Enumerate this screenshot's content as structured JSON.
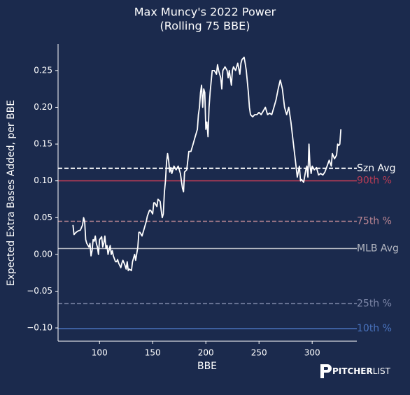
{
  "chart_data": {
    "type": "line",
    "title": "Max Muncy's 2022 Power",
    "subtitle": "(Rolling 75 BBE)",
    "x_label": "BBE",
    "y_label": "Expected Extra Bases Added, per BBE",
    "logo": {
      "bold": "PITCHER",
      "light": "LIST"
    },
    "xlim": [
      61,
      342
    ],
    "ylim": [
      -0.118,
      0.286
    ],
    "xticks": [
      100,
      150,
      200,
      250,
      300
    ],
    "yticks": [
      {
        "value": 0.25,
        "label": "0.25"
      },
      {
        "value": 0.2,
        "label": "0.20"
      },
      {
        "value": 0.15,
        "label": "0.15"
      },
      {
        "value": 0.1,
        "label": "0.10"
      },
      {
        "value": 0.05,
        "label": "0.05"
      },
      {
        "value": 0,
        "label": "0.00"
      },
      {
        "value": -0.05,
        "label": "−0.05"
      },
      {
        "value": -0.1,
        "label": "−0.10"
      }
    ],
    "grid": false,
    "reference_lines": [
      {
        "name": "Szn Avg",
        "value": 0.117,
        "color": "#ffffff",
        "dashed": true
      },
      {
        "name": "90th %",
        "value": 0.1,
        "color": "#b83c55",
        "dashed": false
      },
      {
        "name": "75th %",
        "value": 0.045,
        "color": "#b98592",
        "dashed": true
      },
      {
        "name": "MLB Avg",
        "value": 0.008,
        "color": "#b5b8c2",
        "dashed": false
      },
      {
        "name": "25th %",
        "value": -0.067,
        "color": "#7d87a8",
        "dashed": true
      },
      {
        "name": "10th %",
        "value": -0.101,
        "color": "#4a74c0",
        "dashed": false
      }
    ],
    "series": [
      {
        "color": "#ffffff",
        "x": [
          75,
          76,
          78,
          80,
          82,
          84,
          85,
          86,
          87,
          88,
          90,
          91,
          92,
          93,
          94,
          95,
          96,
          97,
          98,
          99,
          100,
          102,
          103,
          104,
          105,
          106,
          107,
          108,
          110,
          111,
          112,
          113,
          115,
          116,
          117,
          118,
          120,
          121,
          122,
          124,
          125,
          126,
          127,
          128,
          130,
          131,
          132,
          133,
          134,
          136,
          137,
          138,
          140,
          142,
          144,
          145,
          147,
          148,
          150,
          151,
          152,
          154,
          155,
          157,
          158,
          159,
          160,
          161,
          162,
          163,
          164,
          165,
          166,
          167,
          168,
          170,
          172,
          174,
          176,
          177,
          178,
          179,
          180,
          182,
          184,
          186,
          188,
          190,
          192,
          193,
          194,
          195,
          196,
          197,
          198,
          199,
          200,
          201,
          202,
          203,
          204,
          206,
          208,
          210,
          211,
          212,
          214,
          215,
          216,
          218,
          220,
          221,
          222,
          224,
          225,
          226,
          228,
          230,
          232,
          233,
          234,
          236,
          237,
          238,
          240,
          241,
          242,
          244,
          246,
          248,
          250,
          252,
          254,
          256,
          258,
          260,
          262,
          264,
          266,
          268,
          270,
          272,
          274,
          276,
          278,
          280,
          282,
          284,
          286,
          288,
          289,
          290,
          292,
          294,
          295,
          296,
          297,
          298,
          299,
          300,
          302,
          304,
          306,
          308,
          310,
          312,
          314,
          316,
          318,
          319,
          321,
          323,
          324,
          325,
          326,
          327
        ],
        "values": [
          0.04,
          0.027,
          0.03,
          0.032,
          0.033,
          0.04,
          0.05,
          0.045,
          0.02,
          0.015,
          0.01,
          0.015,
          -0.002,
          0.005,
          0.02,
          0.018,
          0.025,
          0.015,
          0.01,
          0.0,
          0.02,
          0.024,
          0.01,
          0.015,
          0.025,
          0.008,
          0.012,
          0.0,
          0.012,
          0.0,
          0.005,
          -0.002,
          -0.01,
          -0.01,
          -0.007,
          -0.012,
          -0.018,
          -0.012,
          -0.008,
          -0.015,
          -0.02,
          -0.01,
          -0.022,
          -0.02,
          -0.022,
          -0.01,
          -0.005,
          0.0,
          -0.008,
          0.01,
          0.03,
          0.03,
          0.025,
          0.035,
          0.045,
          0.052,
          0.06,
          0.06,
          0.055,
          0.07,
          0.07,
          0.065,
          0.075,
          0.072,
          0.06,
          0.05,
          0.055,
          0.085,
          0.1,
          0.125,
          0.137,
          0.128,
          0.112,
          0.118,
          0.11,
          0.12,
          0.115,
          0.12,
          0.11,
          0.1,
          0.09,
          0.085,
          0.112,
          0.115,
          0.14,
          0.14,
          0.15,
          0.16,
          0.17,
          0.19,
          0.2,
          0.22,
          0.23,
          0.2,
          0.225,
          0.22,
          0.17,
          0.18,
          0.16,
          0.2,
          0.22,
          0.25,
          0.25,
          0.245,
          0.258,
          0.25,
          0.24,
          0.225,
          0.25,
          0.255,
          0.25,
          0.24,
          0.25,
          0.23,
          0.25,
          0.255,
          0.25,
          0.26,
          0.245,
          0.26,
          0.265,
          0.268,
          0.26,
          0.25,
          0.22,
          0.2,
          0.19,
          0.187,
          0.19,
          0.19,
          0.193,
          0.19,
          0.195,
          0.2,
          0.19,
          0.192,
          0.19,
          0.2,
          0.21,
          0.225,
          0.237,
          0.225,
          0.2,
          0.19,
          0.2,
          0.18,
          0.155,
          0.13,
          0.105,
          0.12,
          0.1,
          0.102,
          0.098,
          0.115,
          0.12,
          0.105,
          0.15,
          0.12,
          0.11,
          0.12,
          0.115,
          0.118,
          0.108,
          0.11,
          0.108,
          0.112,
          0.12,
          0.128,
          0.12,
          0.137,
          0.13,
          0.135,
          0.15,
          0.148,
          0.15,
          0.17
        ]
      }
    ]
  }
}
